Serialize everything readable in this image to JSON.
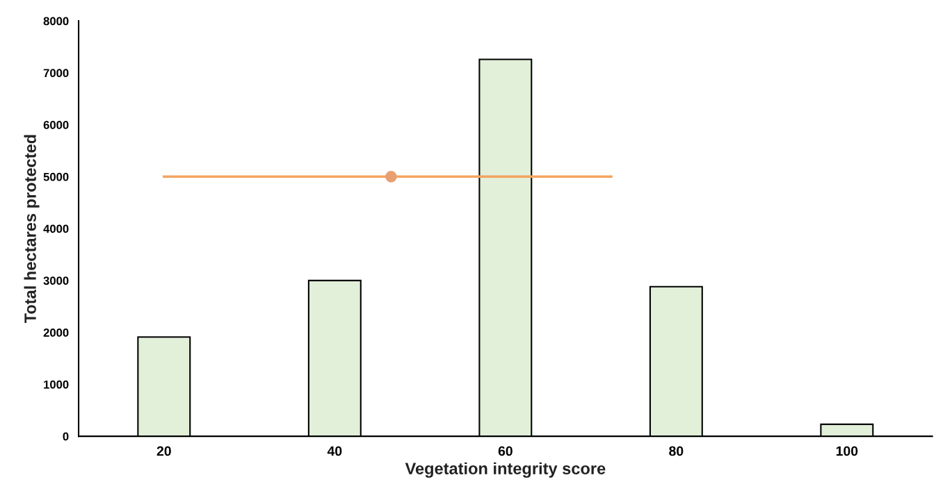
{
  "chart_data": {
    "type": "bar",
    "xlabel": "Vegetation integrity score",
    "ylabel": "Total hectares protected",
    "x": [
      20,
      40,
      60,
      80,
      100
    ],
    "xlim": [
      10,
      110
    ],
    "xticks": [
      20,
      40,
      60,
      80,
      100
    ],
    "ylim": [
      0,
      8000
    ],
    "yticks": [
      0,
      1000,
      2000,
      3000,
      4000,
      5000,
      6000,
      7000,
      8000
    ],
    "grid": false,
    "legend": false,
    "series": [
      {
        "color": "#e2efd9",
        "values": [
          1910,
          3000,
          7260,
          2880,
          230
        ]
      },
      {
        "type": "line",
        "color": "#f4a460",
        "x": [
          20,
          46.6,
          72.4
        ],
        "values": [
          5000,
          5000,
          5000
        ],
        "marker": "none"
      },
      {
        "type": "scatter",
        "color": "#e8a070",
        "x": [
          46.6
        ],
        "values": [
          5000
        ],
        "marker": "circle"
      }
    ]
  }
}
